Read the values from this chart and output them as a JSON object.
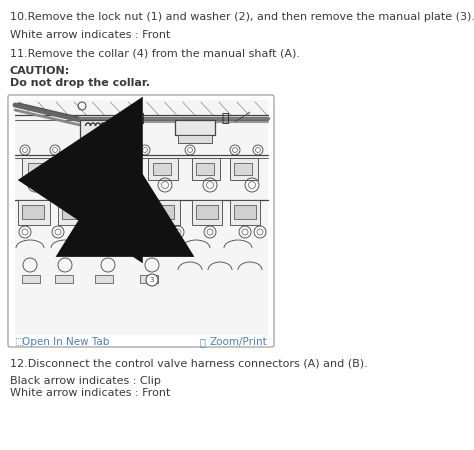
{
  "bg_color": "#ffffff",
  "text_color": "#3a3a3a",
  "blue_color": "#4a7fc1",
  "line1": "10.Remove the lock nut (1) and washer (2), and then remove the manual plate (3).",
  "line2": "White arrow indicates : Front",
  "line3": "11.Remove the collar (4) from the manual shaft (A).",
  "caution_label": "CAUTION:",
  "caution_text": "Do not drop the collar.",
  "link1": "Open In New Tab",
  "link2": "Zoom/Print",
  "line4": "12.Disconnect the control valve harness connectors (A) and (B).",
  "line5": "Black arrow indicates : Clip",
  "line6": "White arrow indicates : Front",
  "font_size": 8.0
}
